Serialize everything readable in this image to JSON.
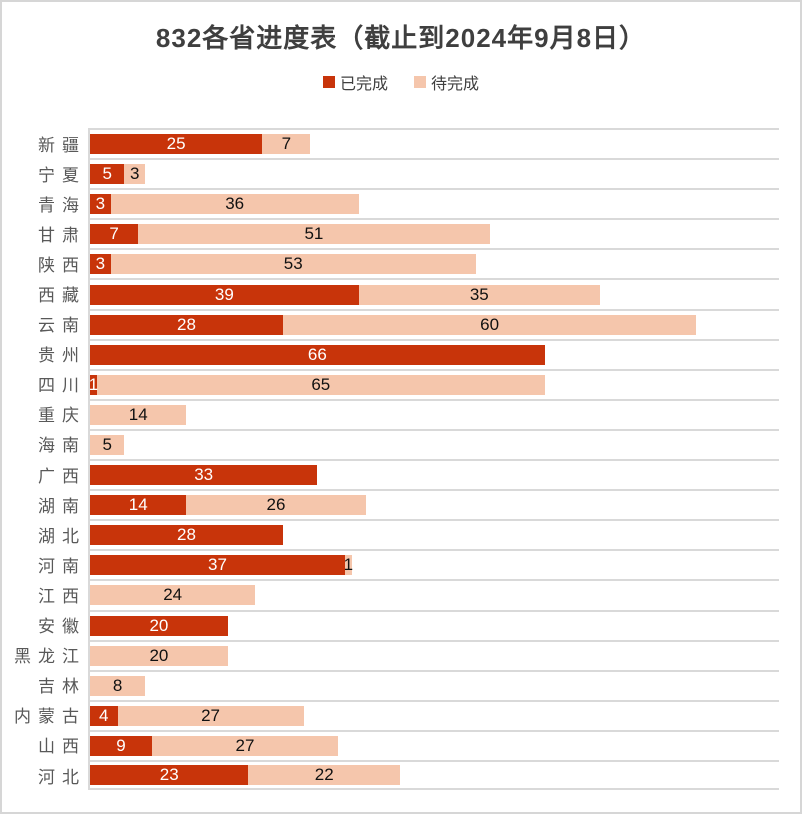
{
  "title": "832各省进度表（截止到2024年9月8日）",
  "legend": [
    {
      "label": "已完成",
      "color": "#C8340A"
    },
    {
      "label": "待完成",
      "color": "#F5C6AC"
    }
  ],
  "chart_data": {
    "type": "bar",
    "orientation": "horizontal",
    "stacked": true,
    "title": "832各省进度表（截止到2024年9月8日）",
    "categories": [
      "新疆",
      "宁夏",
      "青海",
      "甘肃",
      "陕西",
      "西藏",
      "云南",
      "贵州",
      "四川",
      "重庆",
      "海南",
      "广西",
      "湖南",
      "湖北",
      "河南",
      "江西",
      "安徽",
      "黑龙江",
      "吉林",
      "内蒙古",
      "山西",
      "河北"
    ],
    "series": [
      {
        "name": "已完成",
        "color": "#C8340A",
        "label_color": "#FFFFFF",
        "values": [
          25,
          5,
          3,
          7,
          3,
          39,
          28,
          66,
          1,
          0,
          0,
          33,
          14,
          28,
          37,
          0,
          20,
          0,
          0,
          4,
          9,
          23
        ]
      },
      {
        "name": "待完成",
        "color": "#F5C6AC",
        "label_color": "#111111",
        "values": [
          7,
          3,
          36,
          51,
          53,
          35,
          60,
          0,
          65,
          14,
          5,
          0,
          26,
          0,
          1,
          24,
          0,
          20,
          8,
          27,
          27,
          22
        ]
      }
    ],
    "xlim": [
      0,
      100
    ],
    "grid": true,
    "gridline_color": "#D9D9D9",
    "axis_label_color": "#595959",
    "legend_position": "top",
    "value_labels": "segment-center"
  }
}
